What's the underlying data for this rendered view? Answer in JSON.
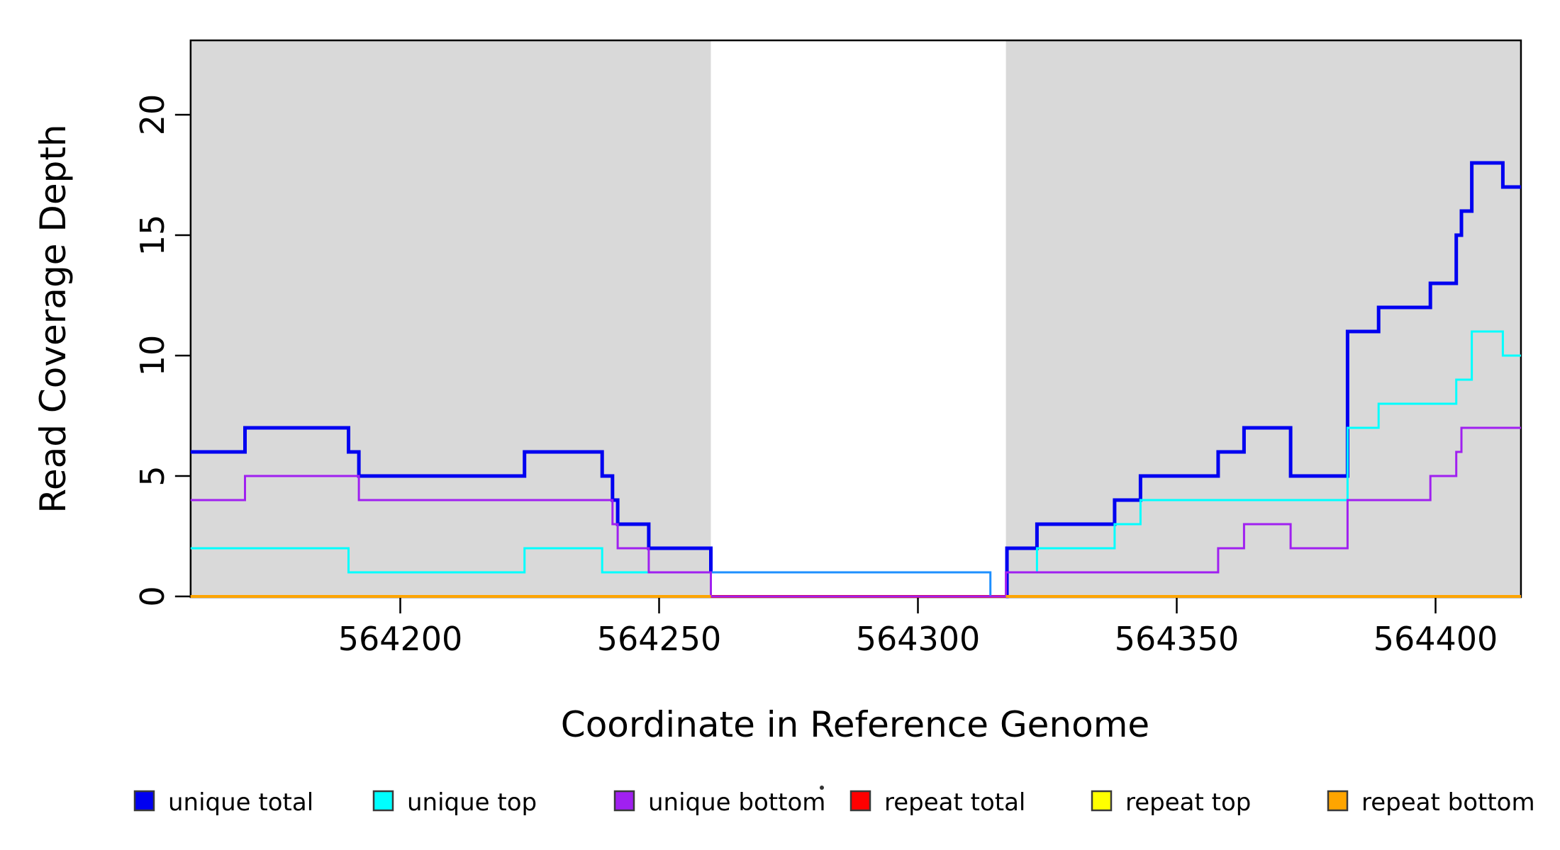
{
  "chart_data": {
    "type": "line",
    "subtype": "step",
    "title": "",
    "xlabel": "Coordinate in Reference Genome",
    "ylabel": "Read Coverage Depth",
    "x_domain": [
      564159.5,
      564416.5
    ],
    "y_domain": [
      0,
      23.1
    ],
    "grid": "off",
    "x_axis": {
      "ticks": [
        {
          "value": 564200,
          "label": "564200"
        },
        {
          "value": 564250,
          "label": "564250"
        },
        {
          "value": 564300,
          "label": "564300"
        },
        {
          "value": 564350,
          "label": "564350"
        },
        {
          "value": 564400,
          "label": "564400"
        }
      ]
    },
    "y_axis": {
      "ticks": [
        {
          "value": 0,
          "label": "0"
        },
        {
          "value": 5,
          "label": "5"
        },
        {
          "value": 10,
          "label": "10"
        },
        {
          "value": 15,
          "label": "15"
        },
        {
          "value": 20,
          "label": "20"
        }
      ]
    },
    "shaded_regions": {
      "color": "#D9D9D9",
      "regions": [
        {
          "from": 564159.5,
          "to": 564260
        },
        {
          "from": 564317,
          "to": 564416.5
        }
      ]
    },
    "white_gap": {
      "from": 564260,
      "to": 564317
    },
    "series": [
      {
        "name": "repeat top",
        "color": "#FFFF00",
        "width": 2,
        "segments": [
          {
            "end": 564416.5,
            "steps": [
              [
                564159.5,
                0
              ]
            ]
          }
        ]
      },
      {
        "name": "repeat total",
        "color": "#FF0000",
        "width": 4,
        "segments": [
          {
            "end": 564416.5,
            "steps": [
              [
                564159.5,
                0
              ]
            ]
          }
        ]
      },
      {
        "name": "unique total",
        "color": "#0000F0",
        "width": 5,
        "segments": [
          {
            "end": 564260,
            "steps": [
              [
                564159.5,
                6
              ],
              [
                564170,
                7
              ],
              [
                564190,
                6
              ],
              [
                564192,
                5
              ],
              [
                564224,
                6
              ],
              [
                564239,
                5
              ],
              [
                564241,
                4
              ],
              [
                564242,
                3
              ],
              [
                564248,
                2
              ],
              [
                564260,
                1
              ]
            ]
          },
          {
            "end": 564317,
            "color": "#1E90FF",
            "width": 3,
            "steps": [
              [
                564260,
                1
              ],
              [
                564314,
                0
              ]
            ]
          },
          {
            "end": 564416.5,
            "steps": [
              [
                564317,
                0
              ],
              [
                564317.2,
                2
              ],
              [
                564323,
                3
              ],
              [
                564338,
                4
              ],
              [
                564343,
                5
              ],
              [
                564358,
                6
              ],
              [
                564363,
                7
              ],
              [
                564372,
                5
              ],
              [
                564383,
                11
              ],
              [
                564389,
                12
              ],
              [
                564399,
                13
              ],
              [
                564404,
                15
              ],
              [
                564405,
                16
              ],
              [
                564407,
                18
              ],
              [
                564413,
                17
              ]
            ]
          }
        ]
      },
      {
        "name": "unique top",
        "color": "#00FFFF",
        "width": 3,
        "segments": [
          {
            "end": 564260,
            "steps": [
              [
                564159.5,
                2
              ],
              [
                564190,
                1
              ],
              [
                564224,
                2
              ],
              [
                564239,
                1
              ]
            ]
          },
          {
            "end": 564416.5,
            "steps": [
              [
                564317,
                1
              ],
              [
                564323,
                2
              ],
              [
                564338,
                3
              ],
              [
                564343,
                4
              ],
              [
                564383,
                7
              ],
              [
                564389,
                8
              ],
              [
                564404,
                9
              ],
              [
                564407,
                11
              ],
              [
                564413,
                10
              ]
            ]
          }
        ]
      },
      {
        "name": "unique bottom",
        "color": "#A020F0",
        "width": 3,
        "segments": [
          {
            "end": 564416.5,
            "steps": [
              [
                564159.5,
                4
              ],
              [
                564170,
                5
              ],
              [
                564192,
                4
              ],
              [
                564241,
                3
              ],
              [
                564242,
                2
              ],
              [
                564248,
                1
              ],
              [
                564260,
                0
              ],
              [
                564317,
                1
              ],
              [
                564358,
                2
              ],
              [
                564363,
                3
              ],
              [
                564372,
                2
              ],
              [
                564383,
                4
              ],
              [
                564399,
                5
              ],
              [
                564404,
                6
              ],
              [
                564405,
                7
              ]
            ]
          }
        ]
      },
      {
        "name": "repeat bottom",
        "color": "#FFA500",
        "width": 4,
        "segments": [
          {
            "end": 564260,
            "steps": [
              [
                564159.5,
                0
              ]
            ]
          },
          {
            "end": 564416.5,
            "steps": [
              [
                564317,
                0
              ]
            ]
          }
        ]
      }
    ],
    "legend": {
      "position": "bottom",
      "items": [
        {
          "label": "unique total",
          "color": "#0000F0"
        },
        {
          "label": "unique top",
          "color": "#00FFFF"
        },
        {
          "label": "unique bottom",
          "color": "#A020F0"
        },
        {
          "label": "repeat total",
          "color": "#FF0000"
        },
        {
          "label": "repeat top",
          "color": "#FFFF00"
        },
        {
          "label": "repeat bottom",
          "color": "#FFA500"
        }
      ]
    }
  }
}
